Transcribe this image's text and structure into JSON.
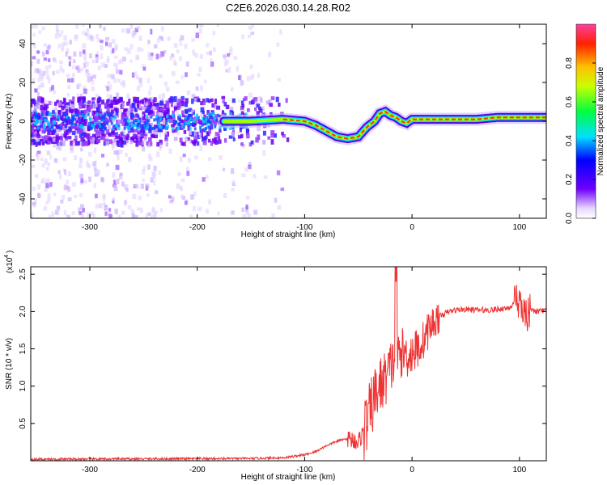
{
  "title": "C2E6.2026.030.14.28.R02",
  "chart_data": [
    {
      "type": "heatmap",
      "name": "spectrogram",
      "xlabel": "Height of straight line (km)",
      "ylabel": "Frequency (Hz)",
      "xlim": [
        -355,
        125
      ],
      "ylim": [
        -50,
        50
      ],
      "xticks": [
        -300,
        -200,
        -100,
        0,
        100
      ],
      "yticks": [
        -40,
        -20,
        0,
        20,
        40
      ],
      "colorbar": {
        "label": "Normalized spectral amplitude",
        "range": [
          0,
          1
        ],
        "ticks": [
          "0.0",
          "0.2",
          "0.4",
          "0.6",
          "0.8"
        ],
        "tick_values": [
          0,
          0.2,
          0.4,
          0.6,
          0.8
        ]
      },
      "ridge": {
        "x": [
          -355,
          -300,
          -250,
          -200,
          -170,
          -150,
          -120,
          -100,
          -90,
          -80,
          -70,
          -60,
          -50,
          -42,
          -35,
          -30,
          -25,
          -20,
          -15,
          -10,
          -5,
          0,
          20,
          40,
          60,
          80,
          100,
          125
        ],
        "y": [
          0,
          0,
          0,
          0,
          0,
          0,
          1,
          0,
          -2,
          -5,
          -8,
          -9,
          -8,
          -3,
          0,
          4,
          5,
          3,
          2,
          0,
          -1,
          1,
          1,
          1,
          1,
          2,
          2,
          2
        ]
      }
    },
    {
      "type": "line",
      "name": "snr",
      "xlabel": "Height of straight line (km)",
      "ylabel": "SNR (10 * v/v)",
      "scale_label": "(x10",
      "scale_exp": "4",
      "xlim": [
        -355,
        125
      ],
      "ylim": [
        0,
        2.6
      ],
      "xticks": [
        -300,
        -200,
        -100,
        0,
        100
      ],
      "yticks": [
        0.5,
        1.0,
        1.5,
        2.0,
        2.5
      ],
      "ytick_labels": [
        "0.5",
        "1.0",
        "1.5",
        "2.0",
        "2.5"
      ],
      "series": [
        {
          "name": "SNR",
          "color": "#ee3333",
          "x": [
            -355,
            -150,
            -120,
            -100,
            -90,
            -80,
            -70,
            -60,
            -55,
            -50,
            -45,
            -40,
            -35,
            -30,
            -25,
            -20,
            -15,
            -10,
            -5,
            0,
            5,
            10,
            15,
            20,
            25,
            30,
            35,
            40,
            50,
            60,
            70,
            80,
            90,
            95,
            100,
            105,
            110,
            115,
            125
          ],
          "y": [
            0.02,
            0.03,
            0.04,
            0.08,
            0.12,
            0.2,
            0.26,
            0.3,
            0.28,
            0.25,
            0.4,
            0.6,
            0.85,
            1.0,
            1.1,
            1.25,
            1.4,
            1.45,
            1.42,
            1.45,
            1.5,
            1.6,
            1.75,
            1.85,
            1.93,
            1.97,
            2.0,
            2.02,
            2.03,
            2.02,
            2.02,
            2.03,
            2.05,
            2.1,
            2.05,
            2.0,
            2.02,
            2.0,
            2.01
          ]
        }
      ]
    }
  ]
}
